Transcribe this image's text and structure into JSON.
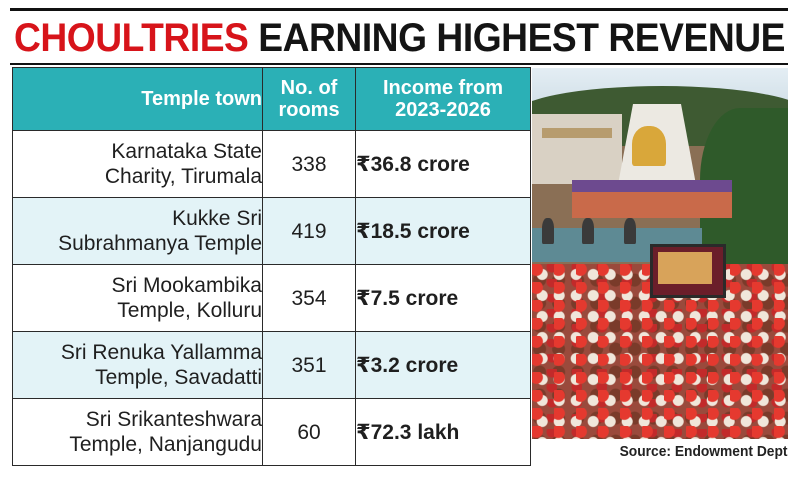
{
  "headline": {
    "highlight": "CHOULTRIES",
    "rest": "EARNING HIGHEST REVENUE"
  },
  "table": {
    "headers": {
      "town": "Temple town",
      "rooms_line1": "No. of",
      "rooms_line2": "rooms",
      "income_line1": "Income from",
      "income_line2": "2023-2026"
    },
    "rows": [
      {
        "town_line1": "Karnataka State",
        "town_line2": "Charity, Tirumala",
        "rooms": "338",
        "income": "₹36.8 crore"
      },
      {
        "town_line1": "Kukke Sri",
        "town_line2": "Subrahmanya Temple",
        "rooms": "419",
        "income": "₹18.5 crore"
      },
      {
        "town_line1": "Sri Mookambika",
        "town_line2": "Temple, Kolluru",
        "rooms": "354",
        "income": "₹7.5 crore"
      },
      {
        "town_line1": "Sri Renuka Yallamma",
        "town_line2": "Temple, Savadatti",
        "rooms": "351",
        "income": "₹3.2 crore"
      },
      {
        "town_line1": "Sri Srikanteshwara",
        "town_line2": "Temple, Nanjangudu",
        "rooms": "60",
        "income": "₹72.3 lakh"
      }
    ]
  },
  "source": "Source: Endowment Dept",
  "colors": {
    "header_bg": "#2bb0b6",
    "accent_red": "#d7141a",
    "row_alt_bg": "#e3f3f7"
  }
}
